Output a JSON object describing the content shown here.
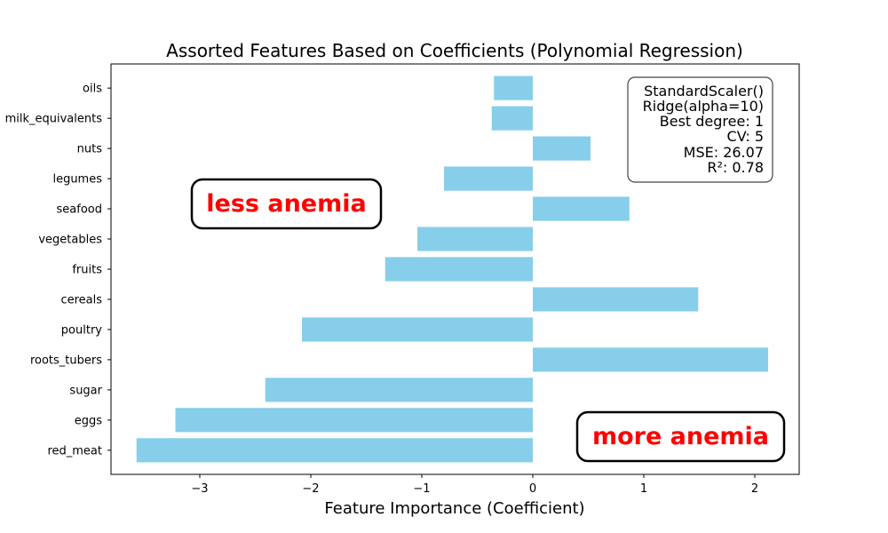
{
  "chart_data": {
    "type": "bar",
    "orientation": "horizontal",
    "title": "Assorted Features Based on Coefficients (Polynomial Regression)",
    "xlabel": "Feature Importance (Coefficient)",
    "ylabel": "",
    "xlim": [
      -3.8,
      2.4
    ],
    "xticks": [
      -3,
      -2,
      -1,
      0,
      1,
      2
    ],
    "xtick_labels": [
      "−3",
      "−2",
      "−1",
      "0",
      "1",
      "2"
    ],
    "categories": [
      "red_meat",
      "eggs",
      "sugar",
      "roots_tubers",
      "poultry",
      "cereals",
      "fruits",
      "vegetables",
      "seafood",
      "legumes",
      "nuts",
      "milk_equivalents",
      "oils"
    ],
    "values": [
      -3.57,
      -3.22,
      -2.41,
      2.12,
      -2.08,
      1.49,
      -1.33,
      -1.04,
      0.87,
      -0.8,
      0.52,
      -0.37,
      -0.35
    ],
    "bar_color": "#87ceeb",
    "grid": false,
    "info_box": [
      "StandardScaler()",
      "Ridge(alpha=10)",
      "Best degree: 1",
      "CV: 5",
      "MSE: 26.07",
      "R²: 0.78"
    ],
    "annotations": {
      "left": "less anemia",
      "right": "more anemia"
    },
    "annotation_color": "#ff0000"
  }
}
